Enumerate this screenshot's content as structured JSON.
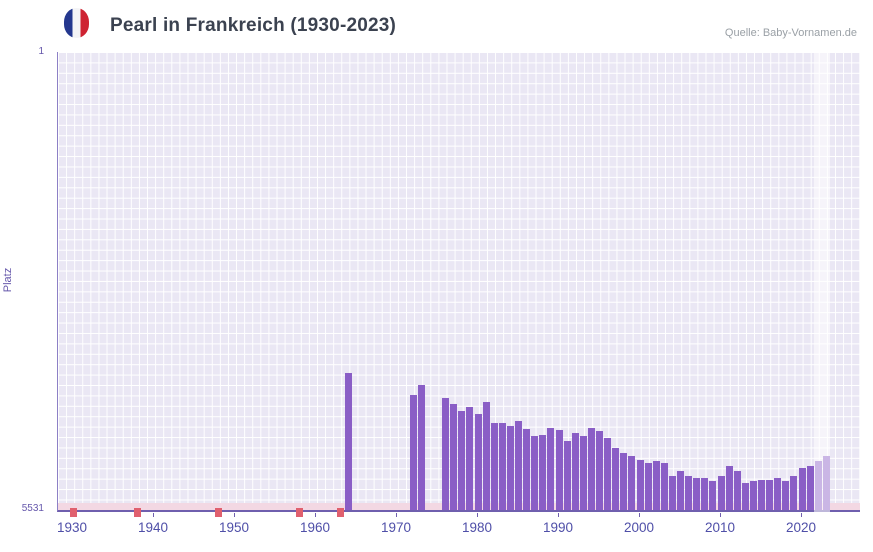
{
  "header": {
    "title": "Pearl in Frankreich (1930-2023)",
    "source": "Quelle: Baby-Vornamen.de",
    "flag_icon": "france-flag"
  },
  "chart_data": {
    "type": "bar",
    "title": "Pearl in Frankreich (1930-2023)",
    "xlabel": "",
    "ylabel": "Platz",
    "x_range": [
      1930,
      2023
    ],
    "x_ticks": [
      1930,
      1940,
      1950,
      1960,
      1970,
      1980,
      1990,
      2000,
      2010,
      2020
    ],
    "y_axis": {
      "top_label": "1",
      "bottom_label": "5531",
      "min": 1,
      "max": 5531,
      "inverted": true
    },
    "grid": true,
    "legend": false,
    "bar_color": "#8a5ec6",
    "points": [
      [
        1964,
        3876
      ],
      [
        1972,
        4141
      ],
      [
        1973,
        4020
      ],
      [
        1976,
        4178
      ],
      [
        1977,
        4250
      ],
      [
        1978,
        4335
      ],
      [
        1979,
        4286
      ],
      [
        1980,
        4371
      ],
      [
        1981,
        4226
      ],
      [
        1982,
        4480
      ],
      [
        1983,
        4480
      ],
      [
        1984,
        4516
      ],
      [
        1985,
        4455
      ],
      [
        1986,
        4552
      ],
      [
        1987,
        4637
      ],
      [
        1988,
        4624
      ],
      [
        1989,
        4540
      ],
      [
        1990,
        4564
      ],
      [
        1991,
        4697
      ],
      [
        1992,
        4600
      ],
      [
        1993,
        4637
      ],
      [
        1994,
        4540
      ],
      [
        1995,
        4576
      ],
      [
        1996,
        4661
      ],
      [
        1997,
        4782
      ],
      [
        1998,
        4842
      ],
      [
        1999,
        4878
      ],
      [
        2000,
        4927
      ],
      [
        2001,
        4963
      ],
      [
        2002,
        4939
      ],
      [
        2003,
        4963
      ],
      [
        2004,
        5120
      ],
      [
        2005,
        5060
      ],
      [
        2006,
        5120
      ],
      [
        2007,
        5144
      ],
      [
        2008,
        5144
      ],
      [
        2009,
        5180
      ],
      [
        2010,
        5120
      ],
      [
        2011,
        5000
      ],
      [
        2012,
        5060
      ],
      [
        2013,
        5204
      ],
      [
        2014,
        5180
      ],
      [
        2015,
        5168
      ],
      [
        2016,
        5168
      ],
      [
        2017,
        5144
      ],
      [
        2018,
        5180
      ],
      [
        2019,
        5120
      ],
      [
        2020,
        5024
      ],
      [
        2021,
        5000
      ],
      [
        2022,
        4940
      ],
      [
        2023,
        4878
      ]
    ],
    "no_data_marker_years": [
      1930,
      1938,
      1948,
      1958,
      1963
    ],
    "highlight_years": [
      2022,
      2023
    ],
    "colors": {
      "plot_background": "#eae7f4",
      "gridline": "#ffffff",
      "axis": "#6f5fae",
      "tick_label": "#4f4fa8",
      "y_label": "#6557ab",
      "no_data_strip": "#f3d8e3",
      "no_data_mark": "#e0606e",
      "highlight": "rgba(255,255,255,0.55)"
    }
  }
}
